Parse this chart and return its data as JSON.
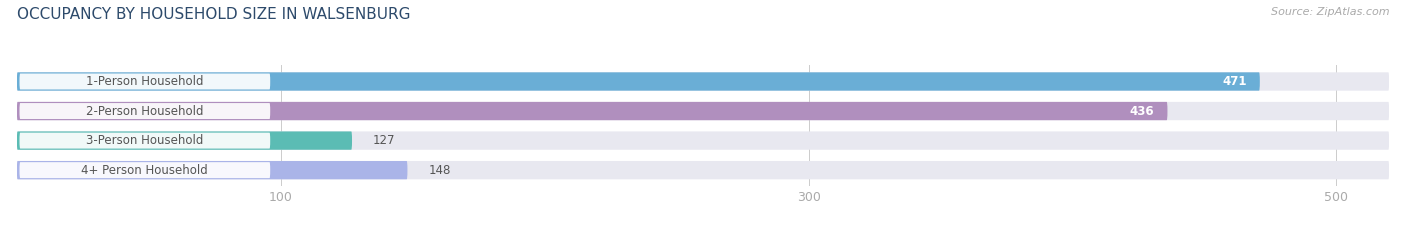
{
  "title": "OCCUPANCY BY HOUSEHOLD SIZE IN WALSENBURG",
  "source": "Source: ZipAtlas.com",
  "categories": [
    "1-Person Household",
    "2-Person Household",
    "3-Person Household",
    "4+ Person Household"
  ],
  "values": [
    471,
    436,
    127,
    148
  ],
  "bar_colors": [
    "#6aaed6",
    "#b08fbe",
    "#5bbcb4",
    "#aab4e8"
  ],
  "bar_bg_color": "#e8e8f0",
  "label_bg_color": "#ffffff",
  "xlim_max": 520,
  "xticks": [
    100,
    300,
    500
  ],
  "title_fontsize": 11,
  "label_fontsize": 8.5,
  "value_fontsize": 8.5,
  "background_color": "#ffffff",
  "bar_height": 0.62,
  "grid_color": "#cccccc",
  "label_text_color": "#555555",
  "value_color_inside": "#ffffff",
  "value_color_outside": "#555555",
  "tick_color": "#aaaaaa",
  "tick_fontsize": 9
}
